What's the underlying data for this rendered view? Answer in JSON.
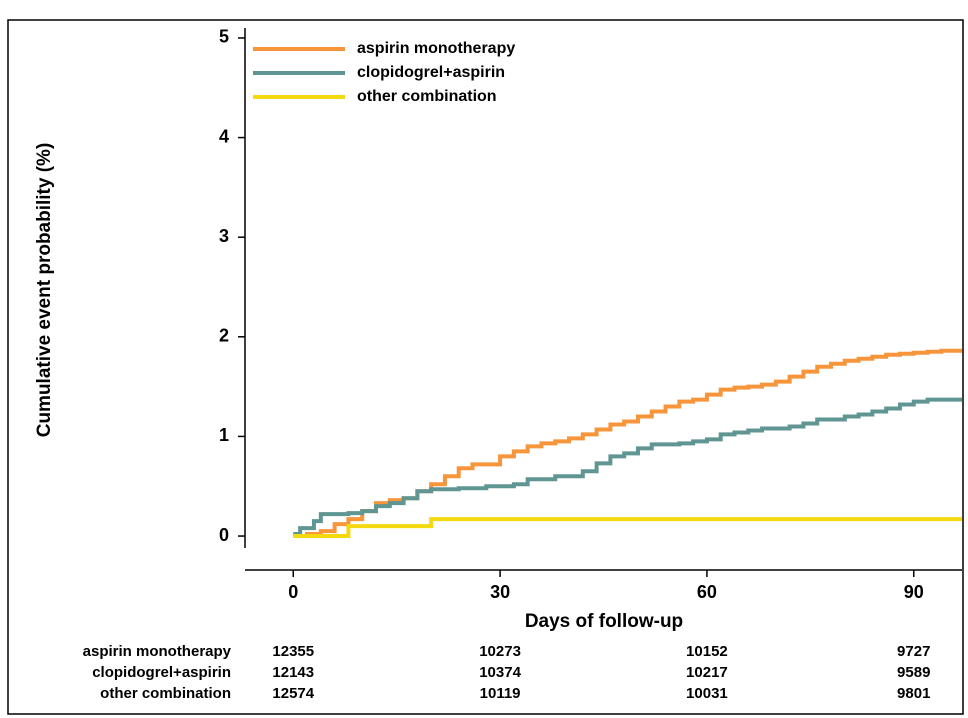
{
  "chart_data": {
    "type": "step",
    "xlabel": "Days of follow-up",
    "ylabel": "Cumulative event probability (%)",
    "xlim": [
      -7,
      97
    ],
    "ylim": [
      -0.12,
      5.1
    ],
    "xticks": [
      0,
      30,
      60,
      90
    ],
    "yticks": [
      0,
      1,
      2,
      3,
      4,
      5
    ],
    "grid": false,
    "legend": "top-left",
    "series": [
      {
        "name": "aspirin monotherapy",
        "color": "#f7953b",
        "x": [
          0,
          2,
          4,
          6,
          8,
          10,
          12,
          14,
          16,
          18,
          20,
          22,
          24,
          26,
          30,
          32,
          34,
          36,
          38,
          40,
          42,
          44,
          46,
          48,
          50,
          52,
          54,
          56,
          58,
          60,
          62,
          64,
          66,
          68,
          70,
          72,
          74,
          76,
          78,
          80,
          82,
          84,
          86,
          88,
          90,
          92,
          94,
          97
        ],
        "values": [
          0,
          0.02,
          0.05,
          0.12,
          0.17,
          0.25,
          0.33,
          0.36,
          0.38,
          0.45,
          0.52,
          0.6,
          0.68,
          0.72,
          0.8,
          0.85,
          0.9,
          0.93,
          0.95,
          0.98,
          1.02,
          1.07,
          1.12,
          1.15,
          1.2,
          1.25,
          1.3,
          1.35,
          1.37,
          1.42,
          1.47,
          1.49,
          1.5,
          1.52,
          1.55,
          1.6,
          1.65,
          1.7,
          1.73,
          1.76,
          1.78,
          1.8,
          1.82,
          1.83,
          1.84,
          1.85,
          1.86,
          1.86
        ],
        "at_risk": [
          12355,
          10273,
          10152,
          9727
        ]
      },
      {
        "name": "clopidogrel+aspirin",
        "color": "#5f9593",
        "x": [
          0,
          1,
          3,
          4,
          8,
          10,
          12,
          14,
          16,
          18,
          20,
          24,
          28,
          32,
          34,
          38,
          42,
          44,
          46,
          48,
          50,
          52,
          56,
          58,
          60,
          62,
          64,
          66,
          68,
          72,
          74,
          76,
          80,
          82,
          84,
          86,
          88,
          90,
          92,
          97
        ],
        "values": [
          0.02,
          0.08,
          0.15,
          0.22,
          0.23,
          0.25,
          0.3,
          0.33,
          0.38,
          0.45,
          0.47,
          0.48,
          0.5,
          0.52,
          0.57,
          0.6,
          0.65,
          0.73,
          0.8,
          0.83,
          0.88,
          0.92,
          0.93,
          0.95,
          0.97,
          1.02,
          1.04,
          1.06,
          1.08,
          1.1,
          1.13,
          1.17,
          1.2,
          1.22,
          1.25,
          1.28,
          1.32,
          1.35,
          1.37,
          1.37
        ],
        "at_risk": [
          12143,
          10374,
          10217,
          9589
        ]
      },
      {
        "name": "other combination",
        "color": "#f5d90f",
        "x": [
          0,
          8,
          20,
          97
        ],
        "values": [
          0,
          0.1,
          0.17,
          0.17
        ],
        "at_risk": [
          12574,
          10119,
          10031,
          9801
        ]
      }
    ]
  }
}
